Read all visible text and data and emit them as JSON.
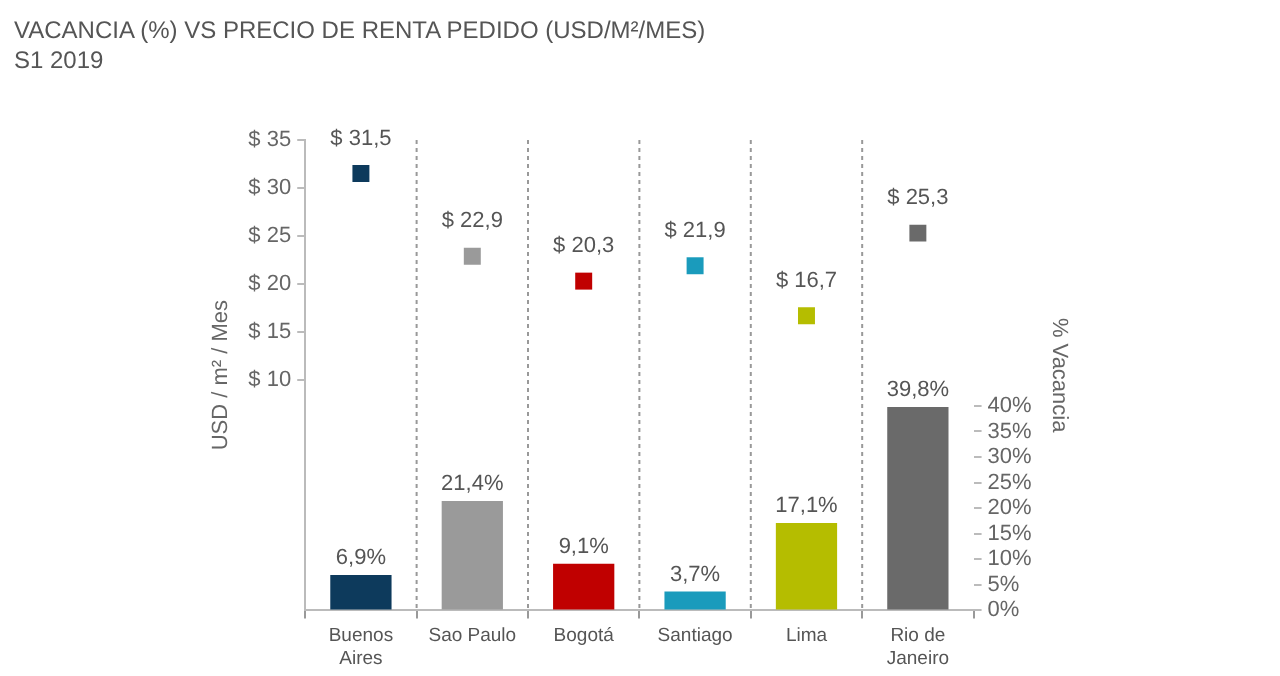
{
  "chart_data": {
    "type": "bar",
    "title": "VACANCIA (%) VS PRECIO DE RENTA PEDIDO (USD/M²/MES)",
    "subtitle": "S1 2019",
    "ylabel": "USD / m² / Mes",
    "y2label": "% Vacancia",
    "categories": [
      "Buenos Aires",
      "Sao Paulo",
      "Bogotá",
      "Santiago",
      "Lima",
      "Rio de Janeiro"
    ],
    "series": [
      {
        "type": "scatter",
        "marker": "square",
        "values": [
          31.5,
          22.9,
          20.3,
          21.9,
          16.7,
          25.3
        ],
        "colors": [
          "#0d3a5c",
          "#9a9a9a",
          "#c00000",
          "#1a9bbc",
          "#b5bd00",
          "#6a6a6a"
        ],
        "value_labels": [
          "$ 31,5",
          "$ 22,9",
          "$ 20,3",
          "$ 21,9",
          "$ 16,7",
          "$ 25,3"
        ]
      },
      {
        "axis": "y2",
        "values": [
          6.9,
          21.4,
          9.1,
          3.7,
          17.1,
          39.8
        ],
        "colors": [
          "#0d3a5c",
          "#9a9a9a",
          "#c00000",
          "#1a9bbc",
          "#b5bd00",
          "#6a6a6a"
        ],
        "value_labels": [
          "6,9%",
          "21,4%",
          "9,1%",
          "3,7%",
          "17,1%",
          "39,8%"
        ]
      }
    ],
    "ylim": [
      -14,
      35
    ],
    "yticks": [
      {
        "value": 10,
        "label": "$ 10"
      },
      {
        "value": 15,
        "label": "$ 15"
      },
      {
        "value": 20,
        "label": "$ 20"
      },
      {
        "value": 25,
        "label": "$ 25"
      },
      {
        "value": 30,
        "label": "$ 30"
      },
      {
        "value": 35,
        "label": "$ 35"
      }
    ],
    "y2lim": [
      0,
      92
    ],
    "y2ticks": [
      {
        "value": 0,
        "label": "0%"
      },
      {
        "value": 5,
        "label": "5%"
      },
      {
        "value": 10,
        "label": "10%"
      },
      {
        "value": 15,
        "label": "15%"
      },
      {
        "value": 20,
        "label": "20%"
      },
      {
        "value": 25,
        "label": "25%"
      },
      {
        "value": 30,
        "label": "30%"
      },
      {
        "value": 35,
        "label": "35%"
      },
      {
        "value": 40,
        "label": "40%"
      }
    ],
    "grid": "x"
  }
}
